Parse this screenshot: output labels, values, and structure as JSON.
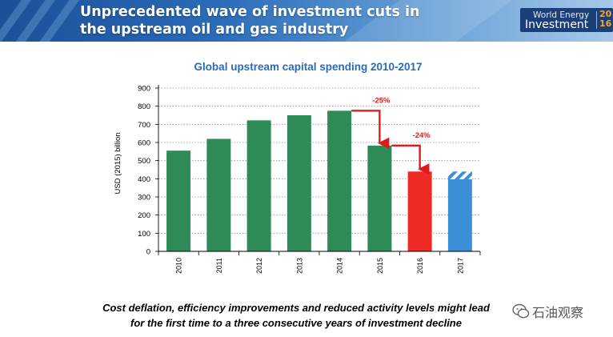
{
  "header": {
    "title_line1": "Unprecedented wave of investment cuts in",
    "title_line2": "the upstream oil and gas industry",
    "logo_line1": "World Energy",
    "logo_line2": "Investment",
    "logo_year_top": "20",
    "logo_year_bottom": "16"
  },
  "colors": {
    "bar_historic": "#2e8b57",
    "bar_2016": "#ee2a24",
    "bar_2017": "#3b8fd6",
    "annotation": "#e01b1b",
    "title_blue": "#2a6bb8"
  },
  "chart_data": {
    "type": "bar",
    "title": "Global upstream capital spending 2010-2017",
    "ylabel": "USD (2015) billion",
    "xlabel": "",
    "categories": [
      "2010",
      "2011",
      "2012",
      "2013",
      "2014",
      "2015",
      "2016",
      "2017"
    ],
    "values": [
      555,
      620,
      722,
      750,
      775,
      583,
      440,
      397
    ],
    "hatched_top_2017": [
      397,
      440
    ],
    "ylim": [
      0,
      900
    ],
    "yticks": [
      0,
      100,
      200,
      300,
      400,
      500,
      600,
      700,
      800,
      900
    ],
    "grid": "horizontal dotted",
    "annotations": [
      {
        "label": "-25%",
        "from": "2014",
        "to": "2015"
      },
      {
        "label": "-24%",
        "from": "2015",
        "to": "2016"
      }
    ]
  },
  "footer": {
    "line1": "Cost deflation, efficiency improvements and reduced activity levels might lead",
    "line2": "for the first time to a three consecutive years of investment decline"
  },
  "watermark": {
    "text": "石油观察",
    "icon": "wechat-icon"
  }
}
